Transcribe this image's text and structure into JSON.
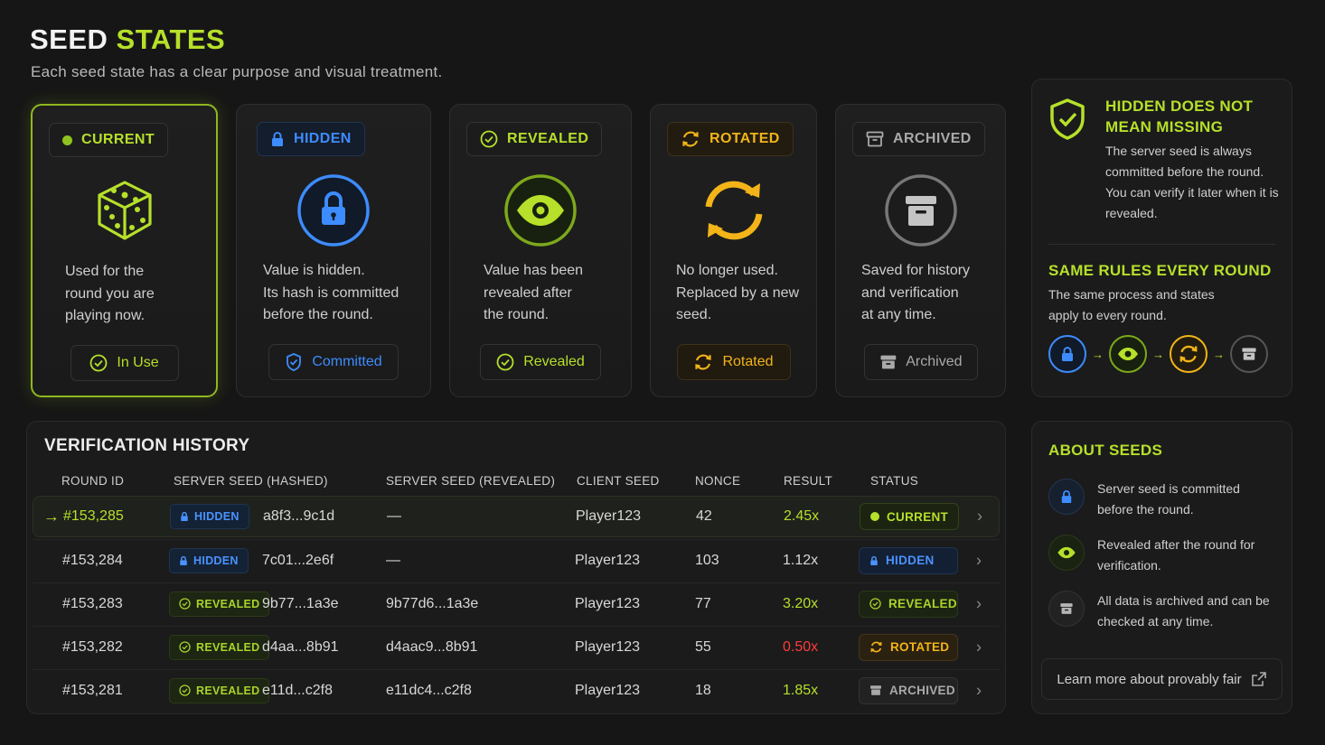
{
  "header": {
    "title_main": "SEED",
    "title_accent": "STATES",
    "subtitle": "Each seed state has a clear purpose and visual treatment."
  },
  "cards": [
    {
      "pill": "CURRENT",
      "desc": "Used for the\nround you are\nplaying now.",
      "button": "In Use",
      "color": "#b6e02a",
      "icon": "dice-icon"
    },
    {
      "pill": "HIDDEN",
      "desc": "Value is hidden.\nIts hash is committed\nbefore the round.",
      "button": "Committed",
      "color": "#3d8cff",
      "icon": "lock-icon"
    },
    {
      "pill": "REVEALED",
      "desc": "Value has been\nrevealed after\nthe round.",
      "button": "Revealed",
      "color": "#b6e02a",
      "icon": "eye-icon"
    },
    {
      "pill": "ROTATED",
      "desc": "No longer used.\nReplaced by a new\nseed.",
      "button": "Rotated",
      "color": "#f2b418",
      "icon": "rotate-icon"
    },
    {
      "pill": "ARCHIVED",
      "desc": "Saved for history\nand verification\nat any time.",
      "button": "Archived",
      "color": "#a9a9a9",
      "icon": "archive-icon"
    }
  ],
  "info_panel": {
    "heading1": "HIDDEN DOES NOT MEAN MISSING",
    "text1": "The server seed is always committed before the round. You can verify it later when it is revealed.",
    "heading2": "SAME RULES EVERY ROUND",
    "text2": "The same process and states apply to every round.",
    "flow": [
      "lock-icon",
      "eye-icon",
      "rotate-icon",
      "archive-icon"
    ]
  },
  "history": {
    "title": "VERIFICATION HISTORY",
    "columns": [
      "ROUND ID",
      "SERVER SEED (HASHED)",
      "SERVER SEED (REVEALED)",
      "CLIENT SEED",
      "NONCE",
      "RESULT",
      "STATUS"
    ],
    "rows": [
      {
        "round": "#153,285",
        "seed_tag": "HIDDEN",
        "hashed": "a8f3...9c1d",
        "revealed": "—",
        "client": "Player123",
        "nonce": "42",
        "result": "2.45x",
        "result_color": "#b6e02a",
        "status": "CURRENT",
        "active": true
      },
      {
        "round": "#153,284",
        "seed_tag": "HIDDEN",
        "hashed": "7c01...2e6f",
        "revealed": "—",
        "client": "Player123",
        "nonce": "103",
        "result": "1.12x",
        "result_color": "#d8d8d8",
        "status": "HIDDEN",
        "active": false
      },
      {
        "round": "#153,283",
        "seed_tag": "REVEALED",
        "hashed": "9b77...1a3e",
        "revealed": "9b77d6...1a3e",
        "client": "Player123",
        "nonce": "77",
        "result": "3.20x",
        "result_color": "#b6e02a",
        "status": "REVEALED",
        "active": false
      },
      {
        "round": "#153,282",
        "seed_tag": "REVEALED",
        "hashed": "d4aa...8b91",
        "revealed": "d4aac9...8b91",
        "client": "Player123",
        "nonce": "55",
        "result": "0.50x",
        "result_color": "#ff3b3b",
        "status": "ROTATED",
        "active": false
      },
      {
        "round": "#153,281",
        "seed_tag": "REVEALED",
        "hashed": "e11d...c2f8",
        "revealed": "e11dc4...c2f8",
        "client": "Player123",
        "nonce": "18",
        "result": "1.85x",
        "result_color": "#b6e02a",
        "status": "ARCHIVED",
        "active": false
      }
    ]
  },
  "about": {
    "title": "ABOUT SEEDS",
    "items": [
      {
        "icon": "lock-icon",
        "text": "Server seed is committed before the round."
      },
      {
        "icon": "eye-icon",
        "text": "Revealed after the round for verification."
      },
      {
        "icon": "archive-icon",
        "text": "All data is archived and can be checked at any time."
      }
    ],
    "link": "Learn more about provably fair"
  }
}
